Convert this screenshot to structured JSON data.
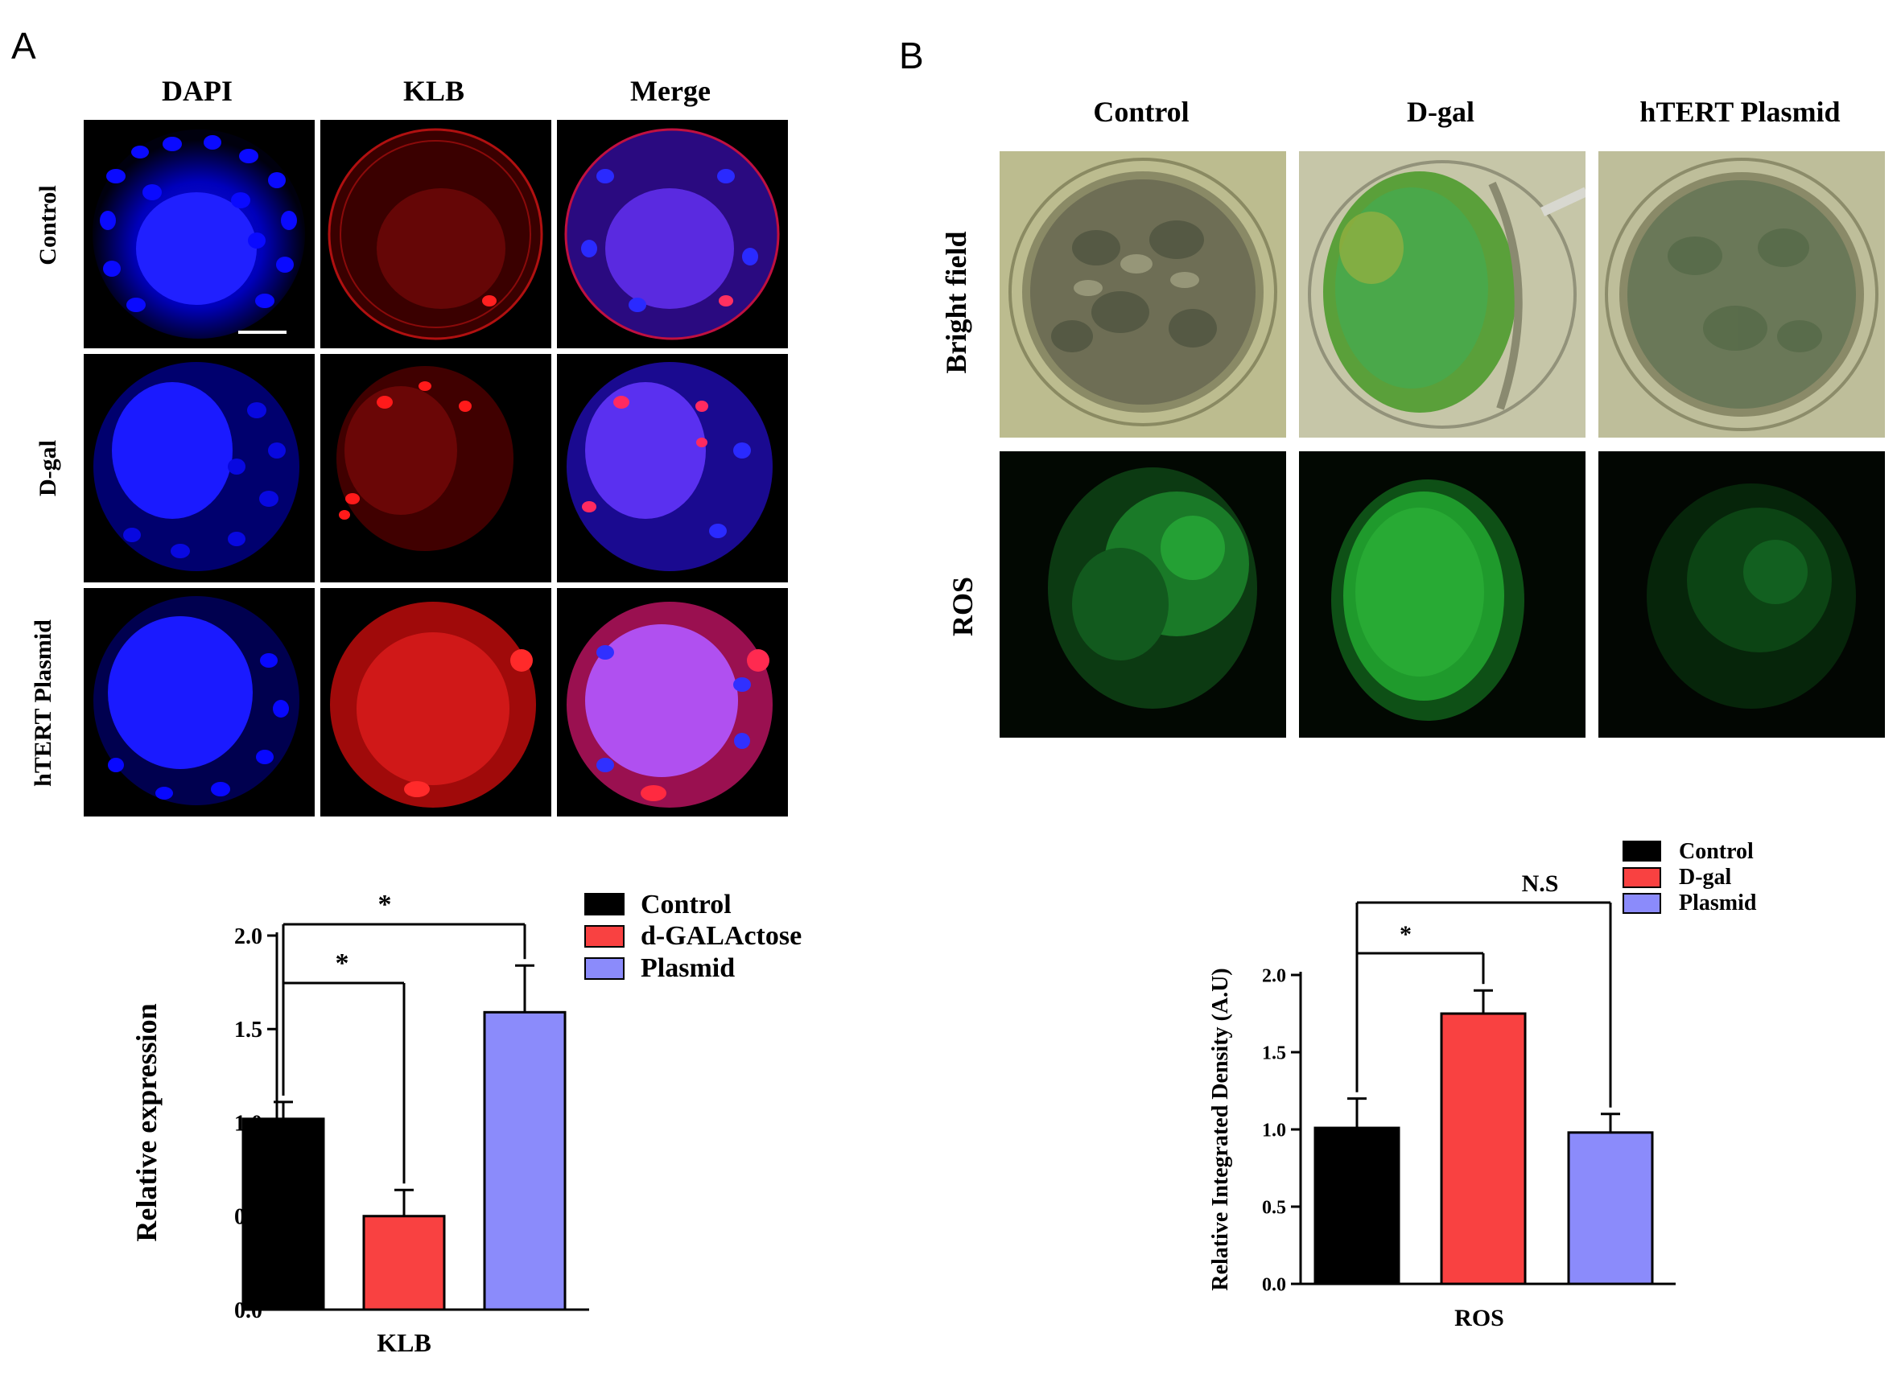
{
  "panelA": {
    "letter": "A",
    "columns": [
      "DAPI",
      "KLB",
      "Merge"
    ],
    "rows": [
      "Control",
      "D-gal",
      "hTERT Plasmid"
    ]
  },
  "panelB": {
    "letter": "B",
    "columns": [
      "Control",
      "D-gal",
      "hTERT Plasmid"
    ],
    "rows": [
      "Bright field",
      "ROS"
    ]
  },
  "chart_data": [
    {
      "type": "bar",
      "categories": [
        "KLB"
      ],
      "xlabel": "KLB",
      "ylabel": "Relative expression",
      "ylim": [
        0,
        2.0
      ],
      "yticks": [
        "0.0",
        "0.5",
        "1.0",
        "1.5",
        "2.0"
      ],
      "series": [
        {
          "name": "Control",
          "values": [
            1.02
          ],
          "error": [
            0.09
          ],
          "color": "#000000"
        },
        {
          "name": "d-GALActose",
          "values": [
            0.5
          ],
          "error": [
            0.14
          ],
          "color": "#f94141"
        },
        {
          "name": "Plasmid",
          "values": [
            1.59
          ],
          "error": [
            0.25
          ],
          "color": "#8b8bfb"
        }
      ],
      "annotations": [
        {
          "from": "Control",
          "to": "d-GALActose",
          "label": "*"
        },
        {
          "from": "Control",
          "to": "Plasmid",
          "label": "*"
        }
      ],
      "legend": "top-right"
    },
    {
      "type": "bar",
      "categories": [
        "ROS"
      ],
      "xlabel": "ROS",
      "ylabel": "Relative Integrated Density (A.U)",
      "ylim": [
        0,
        2.0
      ],
      "yticks": [
        "0.0",
        "0.5",
        "1.0",
        "1.5",
        "2.0"
      ],
      "series": [
        {
          "name": "Control",
          "values": [
            1.01
          ],
          "error": [
            0.19
          ],
          "color": "#000000"
        },
        {
          "name": "D-gal",
          "values": [
            1.75
          ],
          "error": [
            0.15
          ],
          "color": "#f94141"
        },
        {
          "name": "Plasmid",
          "values": [
            0.98
          ],
          "error": [
            0.12
          ],
          "color": "#8b8bfb"
        }
      ],
      "annotations": [
        {
          "from": "Control",
          "to": "D-gal",
          "label": "*"
        },
        {
          "from": "Control",
          "to": "Plasmid",
          "label": "N.S"
        }
      ],
      "legend": "top-right"
    }
  ]
}
